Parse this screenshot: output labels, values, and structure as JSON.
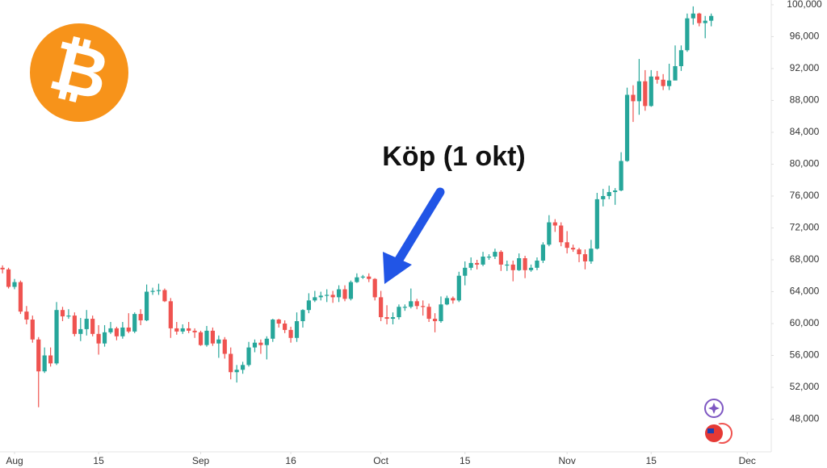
{
  "chart_data": {
    "type": "candlestick",
    "annotation": "Köp (1 okt)",
    "logo": "₿",
    "up_color": "#26a69a",
    "down_color": "#ef5350",
    "x": [
      -2,
      -1,
      0,
      1,
      2,
      3,
      4,
      5,
      6,
      7,
      8,
      9,
      10,
      11,
      12,
      13,
      14,
      15,
      16,
      17,
      18,
      19,
      20,
      21,
      22,
      23,
      24,
      25,
      26,
      27,
      28,
      29,
      30,
      31,
      32,
      33,
      34,
      35,
      36,
      37,
      38,
      39,
      40,
      41,
      42,
      43,
      44,
      45,
      46,
      47,
      48,
      49,
      50,
      51,
      52,
      53,
      54,
      55,
      56,
      57,
      58,
      59,
      60,
      61,
      62,
      63,
      64,
      65,
      66,
      67,
      68,
      69,
      70,
      71,
      72,
      73,
      74,
      75,
      76,
      77,
      78,
      79,
      80,
      81,
      82,
      83,
      84,
      85,
      86,
      87,
      88,
      89,
      90,
      91,
      92,
      93,
      94,
      95,
      96,
      97,
      98,
      99,
      100,
      101,
      102,
      103,
      104,
      105,
      106,
      107,
      108,
      109,
      110,
      111,
      112,
      113,
      114,
      115,
      116
    ],
    "open": [
      67000,
      66800,
      64600,
      65200,
      61500,
      60500,
      58000,
      54000,
      56000,
      55000,
      61700,
      60900,
      61000,
      58700,
      59300,
      60600,
      58700,
      57500,
      58900,
      59400,
      58400,
      59500,
      59000,
      61200,
      60400,
      64000,
      64100,
      64200,
      62800,
      59400,
      59000,
      59400,
      59100,
      58900,
      57300,
      59100,
      57500,
      58000,
      56200,
      53900,
      54200,
      54800,
      57000,
      57600,
      57300,
      58100,
      60500,
      60000,
      59200,
      58200,
      60300,
      61700,
      62900,
      63300,
      63500,
      63600,
      63300,
      64300,
      63100,
      65200,
      65800,
      65900,
      65600,
      63300,
      60800,
      60600,
      60800,
      62100,
      62100,
      62800,
      62200,
      62100,
      60600,
      60300,
      62400,
      63200,
      62900,
      66000,
      67000,
      67600,
      67400,
      68400,
      68400,
      69000,
      67400,
      67400,
      66700,
      68200,
      66700,
      67000,
      67900,
      69900,
      72700,
      72300,
      70200,
      69500,
      69300,
      68700,
      67800,
      69400,
      75600,
      76000,
      76500,
      76700,
      80400,
      88700,
      87900,
      90400,
      87300,
      91000,
      90600,
      89800,
      90500,
      92300,
      94300,
      98300,
      98900,
      97700,
      98000
    ],
    "high": [
      67300,
      67000,
      65600,
      65400,
      62200,
      61000,
      58300,
      57000,
      57000,
      62700,
      62100,
      61800,
      61400,
      60700,
      61700,
      61000,
      59800,
      59800,
      60200,
      59600,
      60200,
      61300,
      61400,
      61800,
      64900,
      64500,
      65000,
      64400,
      63200,
      60200,
      59900,
      60200,
      59400,
      59100,
      59700,
      59500,
      58500,
      58300,
      57000,
      54800,
      55200,
      57700,
      58000,
      58000,
      58400,
      60600,
      60600,
      60400,
      59600,
      61400,
      61800,
      63800,
      64100,
      64000,
      64300,
      64100,
      64800,
      64800,
      65400,
      66300,
      66100,
      66300,
      65700,
      64100,
      62300,
      61400,
      62400,
      62400,
      64400,
      63100,
      62900,
      62500,
      61300,
      63400,
      63500,
      63400,
      66500,
      67800,
      68300,
      68000,
      69000,
      68700,
      69400,
      69200,
      67900,
      67900,
      68800,
      68500,
      67400,
      68300,
      70200,
      73600,
      73100,
      72700,
      71600,
      69900,
      69500,
      69300,
      70500,
      76400,
      76900,
      77300,
      77000,
      81500,
      89600,
      89900,
      93200,
      91800,
      91800,
      91700,
      91300,
      92600,
      94900,
      94900,
      98900,
      99800,
      99000,
      98600,
      98900
    ],
    "low": [
      66300,
      64400,
      64300,
      61200,
      59900,
      57600,
      49500,
      53800,
      54600,
      54800,
      60300,
      60600,
      58400,
      57800,
      58500,
      58400,
      56100,
      57100,
      58700,
      57900,
      58100,
      58800,
      58800,
      59800,
      60300,
      63600,
      63600,
      62700,
      58200,
      58600,
      58700,
      58800,
      58200,
      57200,
      57100,
      57200,
      55700,
      55600,
      53000,
      52600,
      53700,
      54600,
      56400,
      56200,
      55500,
      57700,
      59500,
      58800,
      57600,
      57700,
      59500,
      61300,
      62700,
      62900,
      62700,
      62600,
      62700,
      62800,
      62900,
      65100,
      65600,
      65200,
      62900,
      60300,
      59900,
      59900,
      60500,
      61600,
      61900,
      61800,
      61000,
      60200,
      58900,
      60100,
      62300,
      62500,
      62700,
      64800,
      66700,
      66800,
      67200,
      68000,
      68100,
      66600,
      66600,
      65300,
      66600,
      65700,
      66500,
      66700,
      67600,
      69700,
      71500,
      69700,
      68800,
      69000,
      67700,
      66800,
      67500,
      69300,
      74700,
      75600,
      74900,
      76600,
      80300,
      85300,
      86200,
      86700,
      87200,
      90100,
      89300,
      89300,
      90900,
      91700,
      94100,
      97500,
      97300,
      95800,
      97300
    ],
    "close": [
      66800,
      64600,
      65200,
      61500,
      60500,
      58000,
      54000,
      56000,
      55000,
      61700,
      60900,
      61000,
      58700,
      59300,
      60600,
      58700,
      57500,
      58900,
      59400,
      58400,
      59500,
      59000,
      61200,
      60400,
      64000,
      64100,
      64200,
      62800,
      59400,
      59000,
      59400,
      59100,
      58900,
      57300,
      59100,
      57500,
      58000,
      56200,
      53900,
      54200,
      54800,
      57000,
      57600,
      57300,
      58100,
      60500,
      60000,
      59200,
      58200,
      60300,
      61700,
      62900,
      63300,
      63500,
      63600,
      63300,
      64300,
      63100,
      65200,
      65800,
      65900,
      65600,
      63300,
      60800,
      60600,
      60800,
      62100,
      62100,
      62800,
      62200,
      62100,
      60600,
      60300,
      62400,
      63200,
      62900,
      66000,
      67000,
      67600,
      67400,
      68400,
      68400,
      69000,
      67400,
      67400,
      66700,
      68200,
      66700,
      67000,
      67900,
      69900,
      72700,
      72300,
      70200,
      69500,
      69300,
      68700,
      67800,
      69400,
      75600,
      76000,
      76500,
      76700,
      80400,
      88700,
      87900,
      90400,
      87300,
      91000,
      90600,
      89800,
      90500,
      92300,
      94300,
      98300,
      98900,
      97700,
      98000,
      98600
    ],
    "xlim": [
      -2.42,
      126
    ],
    "xticks": [
      {
        "value": 0,
        "label": "Aug"
      },
      {
        "value": 14,
        "label": "15"
      },
      {
        "value": 31,
        "label": "Sep"
      },
      {
        "value": 46,
        "label": "16"
      },
      {
        "value": 61,
        "label": "Oct"
      },
      {
        "value": 75,
        "label": "15"
      },
      {
        "value": 92,
        "label": "Nov"
      },
      {
        "value": 106,
        "label": "15"
      },
      {
        "value": 122,
        "label": "Dec"
      }
    ],
    "ylim": [
      43900,
      100600
    ],
    "yticks": [
      {
        "value": 48000,
        "label": "48,000"
      },
      {
        "value": 52000,
        "label": "52,000"
      },
      {
        "value": 56000,
        "label": "56,000"
      },
      {
        "value": 60000,
        "label": "60,000"
      },
      {
        "value": 64000,
        "label": "64,000"
      },
      {
        "value": 68000,
        "label": "68,000"
      },
      {
        "value": 72000,
        "label": "72,000"
      },
      {
        "value": 76000,
        "label": "76,000"
      },
      {
        "value": 80000,
        "label": "80,000"
      },
      {
        "value": 84000,
        "label": "84,000"
      },
      {
        "value": 88000,
        "label": "88,000"
      },
      {
        "value": 92000,
        "label": "92,000"
      },
      {
        "value": 96000,
        "label": "96,000"
      },
      {
        "value": 100000,
        "label": "100,000"
      }
    ],
    "grid": false
  }
}
